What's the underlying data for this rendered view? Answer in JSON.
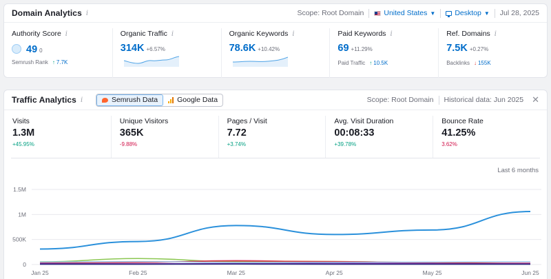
{
  "domain_analytics": {
    "title": "Domain Analytics",
    "scope": "Scope: Root Domain",
    "country": "United States",
    "device": "Desktop",
    "date": "Jul 28, 2025",
    "metrics": [
      {
        "label": "Authority Score",
        "value": "49",
        "change": "0",
        "sub_label": "Semrush Rank",
        "sub_value": "7.7K",
        "sub_dir": "up"
      },
      {
        "label": "Organic Traffic",
        "value": "314K",
        "change": "+6.57%"
      },
      {
        "label": "Organic Keywords",
        "value": "78.6K",
        "change": "+10.42%"
      },
      {
        "label": "Paid Keywords",
        "value": "69",
        "change": "+11.29%",
        "sub_label": "Paid Traffic",
        "sub_value": "10.5K",
        "sub_dir": "up"
      },
      {
        "label": "Ref. Domains",
        "value": "7.5K",
        "change": "+0.27%",
        "sub_label": "Backlinks",
        "sub_value": "155K",
        "sub_dir": "down"
      }
    ]
  },
  "traffic_analytics": {
    "title": "Traffic Analytics",
    "tab_semrush": "Semrush Data",
    "tab_google": "Google Data",
    "scope": "Scope: Root Domain",
    "historical": "Historical data: Jun 2025",
    "last_months": "Last 6 months",
    "metrics": [
      {
        "label": "Visits",
        "value": "1.3M",
        "change": "+45.95%",
        "dir": "pos"
      },
      {
        "label": "Unique Visitors",
        "value": "365K",
        "change": "-9.88%",
        "dir": "neg"
      },
      {
        "label": "Pages / Visit",
        "value": "7.72",
        "change": "+3.74%",
        "dir": "pos"
      },
      {
        "label": "Avg. Visit Duration",
        "value": "00:08:33",
        "change": "+39.78%",
        "dir": "pos"
      },
      {
        "label": "Bounce Rate",
        "value": "41.25%",
        "change": "3.62%",
        "dir": "neg"
      }
    ]
  },
  "chart_data": {
    "type": "line",
    "categories": [
      "Jan 25",
      "Feb 25",
      "Mar 25",
      "Apr 25",
      "May 25",
      "Jun 25"
    ],
    "y_ticks": [
      "0",
      "500K",
      "1M",
      "1.5M"
    ],
    "ylim": [
      0,
      1500000
    ],
    "grid": true,
    "series": [
      {
        "color": "#2a90db",
        "values": [
          310000,
          460000,
          780000,
          600000,
          690000,
          1060000
        ]
      },
      {
        "color": "#8bc751",
        "values": [
          55000,
          120000,
          60000,
          60000,
          40000,
          20000
        ]
      },
      {
        "color": "#e56b9e",
        "values": [
          30000,
          40000,
          80000,
          50000,
          30000,
          30000
        ]
      },
      {
        "color": "#d23b3b",
        "values": [
          40000,
          50000,
          70000,
          60000,
          40000,
          20000
        ]
      },
      {
        "color": "#6b2fa3",
        "values": [
          20000,
          15000,
          20000,
          25000,
          20000,
          15000
        ]
      },
      {
        "color": "#2c2a7e",
        "values": [
          5000,
          5000,
          8000,
          6000,
          5000,
          5000
        ]
      },
      {
        "color": "#9fc7ec",
        "values": [
          50000,
          60000,
          40000,
          45000,
          50000,
          55000
        ]
      }
    ]
  }
}
